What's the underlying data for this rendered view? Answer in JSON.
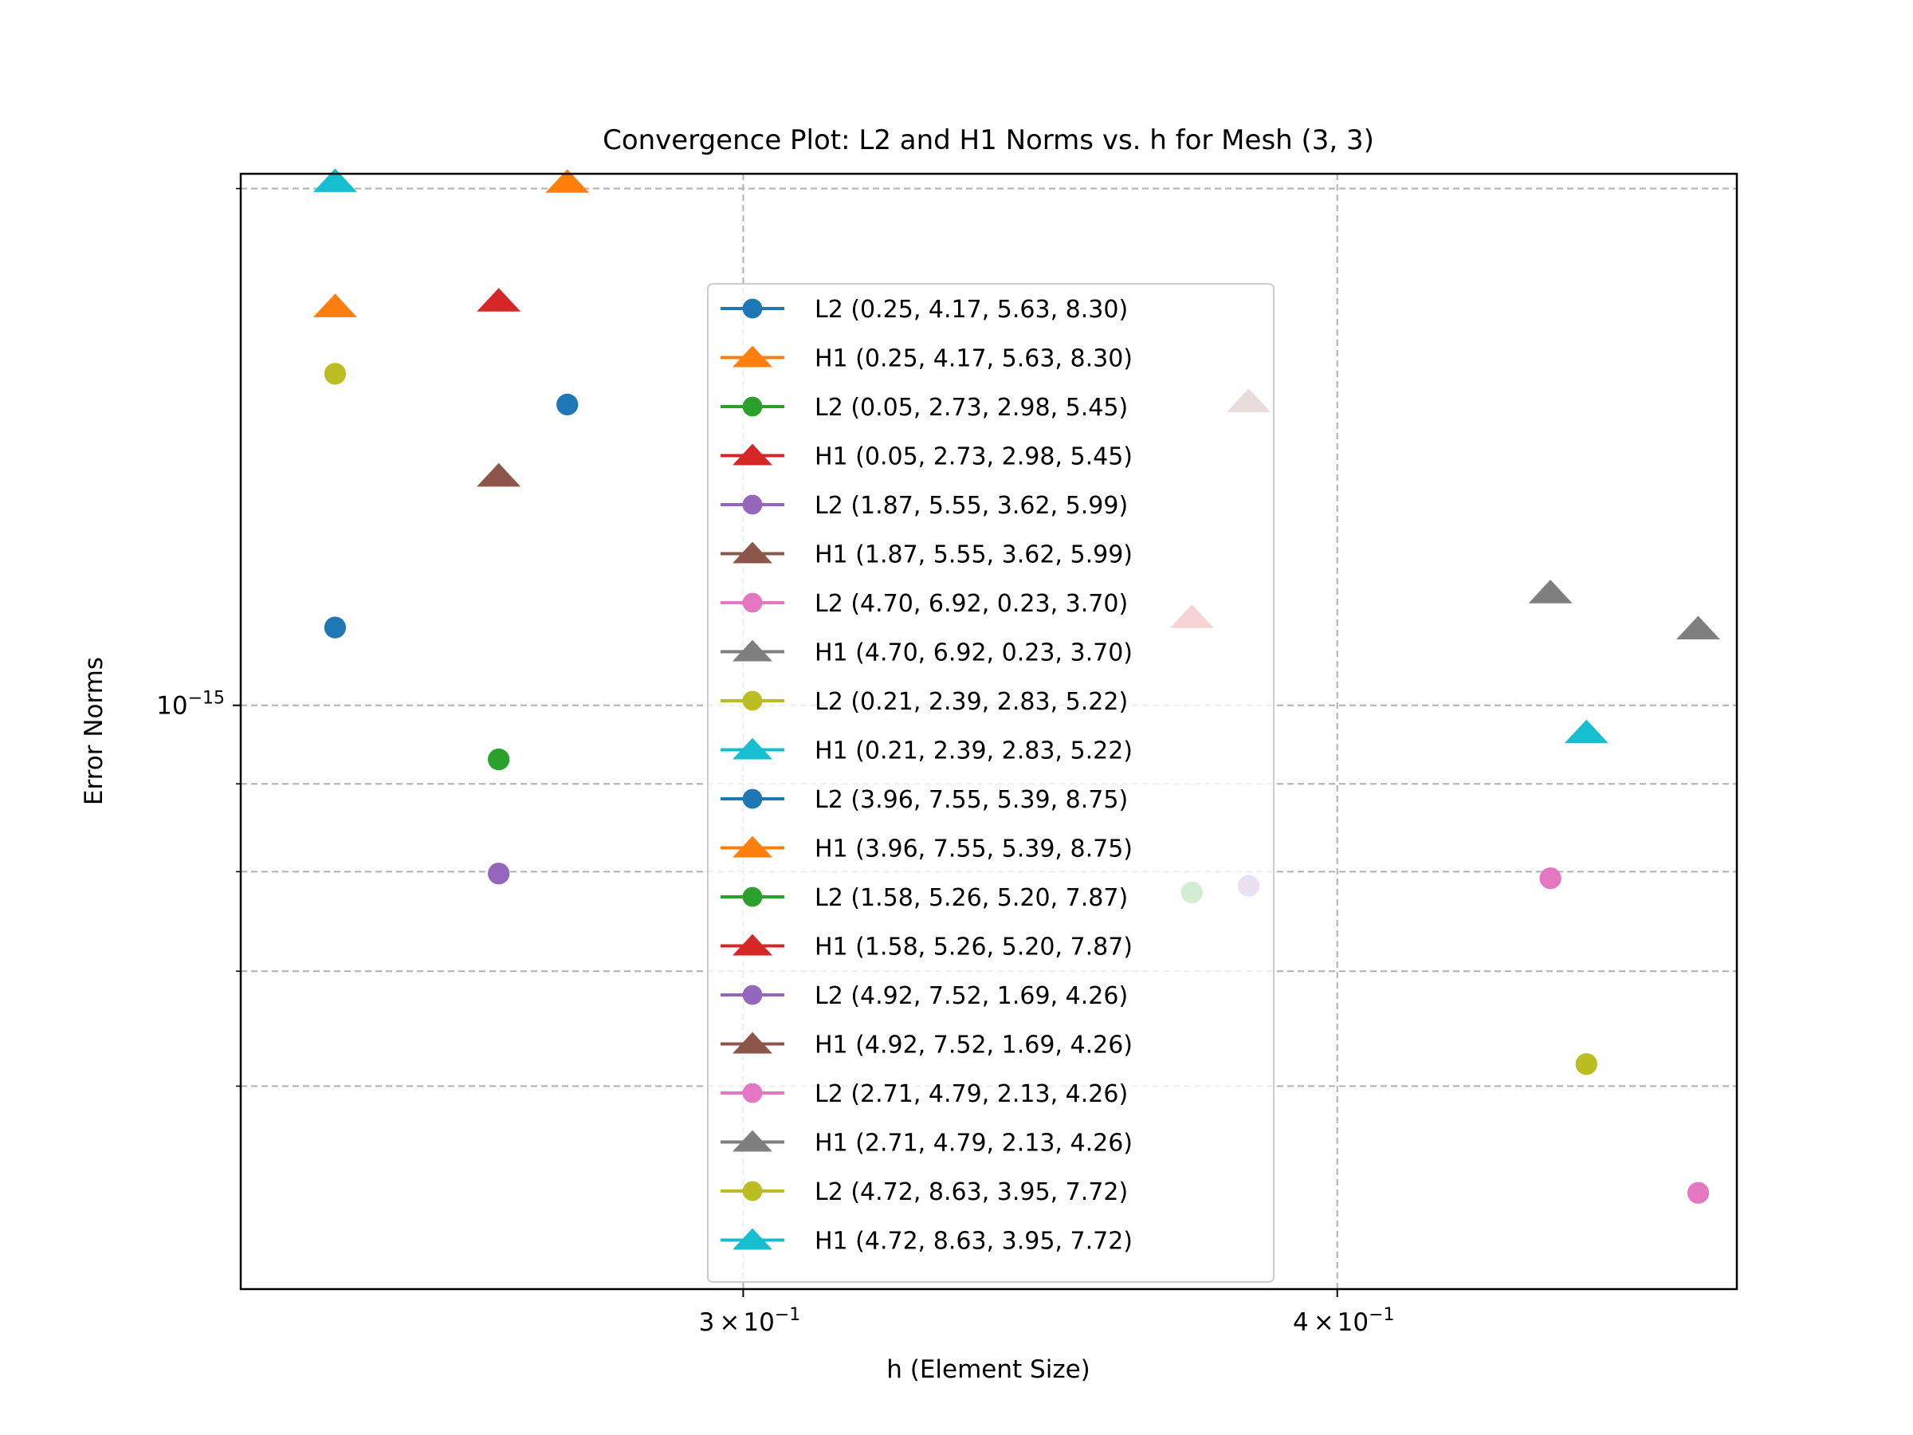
{
  "chart_data": {
    "type": "scatter",
    "title": "Convergence Plot: L2 and H1 Norms vs. h for Mesh (3, 3)",
    "xlabel": "h (Element Size)",
    "ylabel": "Error Norms",
    "xscale": "log",
    "yscale": "log",
    "xlim": [
      0.2352,
      0.4854
    ],
    "ylim": [
      4.57e-16,
      2.04e-15
    ],
    "grid": true,
    "legend_position": "center",
    "x_ticks": [
      {
        "value": 0.3,
        "base": "3",
        "exp": "−1"
      },
      {
        "value": 0.4,
        "base": "4",
        "exp": "−1"
      }
    ],
    "y_ticks": [
      {
        "value": 1e-15,
        "base": "10",
        "exp": "−15"
      }
    ],
    "y_minor_ticks": [
      6e-16,
      7e-16,
      8e-16,
      9e-16,
      2e-15
    ],
    "series": [
      {
        "name": "L2 (0.25, 4.17, 5.63, 8.30)",
        "marker": "circle",
        "color": "#1f77b4",
        "points": [
          [
            0.2462,
            1.11e-15
          ],
          [
            0.2755,
            1.497e-15
          ]
        ]
      },
      {
        "name": "H1 (0.25, 4.17, 5.63, 8.30)",
        "marker": "triangle",
        "color": "#ff7f0e",
        "points": [
          [
            0.2462,
            1.707e-15
          ],
          [
            0.2755,
            2.017e-15
          ]
        ]
      },
      {
        "name": "L2 (0.05, 2.73, 2.98, 5.45)",
        "marker": "circle",
        "color": "#2ca02c",
        "points": [
          [
            0.2665,
            9.3e-16
          ],
          [
            0.3728,
            7.78e-16
          ]
        ]
      },
      {
        "name": "H1 (0.05, 2.73, 2.98, 5.45)",
        "marker": "triangle",
        "color": "#d62728",
        "points": [
          [
            0.2665,
            1.72e-15
          ],
          [
            0.3728,
            1.125e-15
          ]
        ]
      },
      {
        "name": "L2 (1.87, 5.55, 3.62, 5.99)",
        "marker": "circle",
        "color": "#9467bd",
        "points": [
          [
            0.2665,
            7.98e-16
          ],
          [
            0.3832,
            7.85e-16
          ]
        ]
      },
      {
        "name": "H1 (1.87, 5.55, 3.62, 5.99)",
        "marker": "triangle",
        "color": "#8c564b",
        "points": [
          [
            0.2665,
            1.36e-15
          ],
          [
            0.3832,
            1.503e-15
          ]
        ]
      },
      {
        "name": "L2 (4.70, 6.92, 0.23, 3.70)",
        "marker": "circle",
        "color": "#e377c2",
        "points": [
          [
            0.4435,
            7.93e-16
          ],
          [
            0.4764,
            5.2e-16
          ]
        ]
      },
      {
        "name": "H1 (4.70, 6.92, 0.23, 3.70)",
        "marker": "triangle",
        "color": "#7f7f7f",
        "points": [
          [
            0.4435,
            1.163e-15
          ],
          [
            0.4764,
            1.108e-15
          ]
        ]
      },
      {
        "name": "L2 (0.21, 2.39, 2.83, 5.22)",
        "marker": "circle",
        "color": "#bcbd22",
        "points": [
          [
            0.2462,
            1.56e-15
          ],
          [
            0.4513,
            6.18e-16
          ]
        ]
      },
      {
        "name": "H1 (0.21, 2.39, 2.83, 5.22)",
        "marker": "triangle",
        "color": "#17becf",
        "points": [
          [
            0.2462,
            2.019e-15
          ],
          [
            0.4513,
            9.64e-16
          ]
        ]
      },
      {
        "name": "L2 (3.96, 7.55, 5.39, 8.75)",
        "marker": "circle",
        "color": "#1f77b4",
        "points": []
      },
      {
        "name": "H1 (3.96, 7.55, 5.39, 8.75)",
        "marker": "triangle",
        "color": "#ff7f0e",
        "points": []
      },
      {
        "name": "L2 (1.58, 5.26, 5.20, 7.87)",
        "marker": "circle",
        "color": "#2ca02c",
        "points": []
      },
      {
        "name": "H1 (1.58, 5.26, 5.20, 7.87)",
        "marker": "triangle",
        "color": "#d62728",
        "points": []
      },
      {
        "name": "L2 (4.92, 7.52, 1.69, 4.26)",
        "marker": "circle",
        "color": "#9467bd",
        "points": []
      },
      {
        "name": "H1 (4.92, 7.52, 1.69, 4.26)",
        "marker": "triangle",
        "color": "#8c564b",
        "points": []
      },
      {
        "name": "L2 (2.71, 4.79, 2.13, 4.26)",
        "marker": "circle",
        "color": "#e377c2",
        "points": []
      },
      {
        "name": "H1 (2.71, 4.79, 2.13, 4.26)",
        "marker": "triangle",
        "color": "#7f7f7f",
        "points": []
      },
      {
        "name": "L2 (4.72, 8.63, 3.95, 7.72)",
        "marker": "circle",
        "color": "#bcbd22",
        "points": []
      },
      {
        "name": "H1 (4.72, 8.63, 3.95, 7.72)",
        "marker": "triangle",
        "color": "#17becf",
        "points": []
      }
    ]
  }
}
